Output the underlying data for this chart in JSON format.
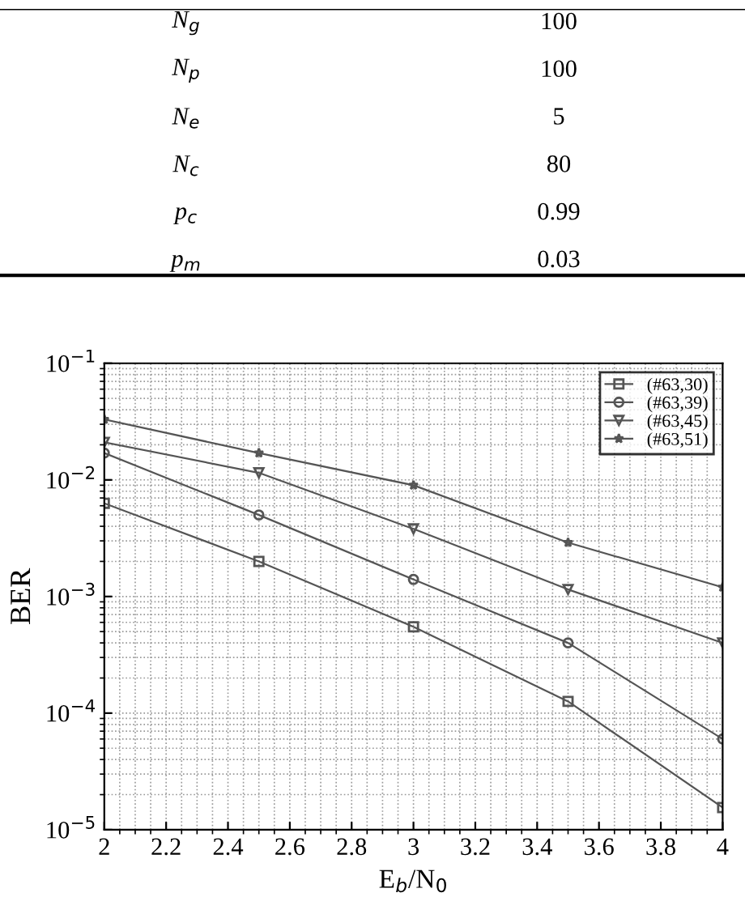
{
  "chart_data": [
    {
      "type": "other",
      "categories": [
        "N$_{g}$",
        "N$_{p}$",
        "N$_{e}$",
        "N$_{c}$",
        "p$_{c}$",
        "p$_{m}$"
      ],
      "values": [
        100,
        100,
        5,
        80,
        0.99,
        0.03
      ],
      "data_labels": true
    },
    {
      "type": "line",
      "xlabel": "E$_{b}$/N$_{0}$",
      "ylabel": "BER",
      "x": [
        2,
        2.5,
        3,
        3.5,
        4
      ],
      "log": "y",
      "xlim": [
        2,
        4
      ],
      "xticks": [
        2,
        2.2,
        2.4,
        2.6,
        2.8,
        3,
        3.2,
        3.4,
        3.6,
        3.8,
        4
      ],
      "ylim": [
        1e-05,
        0.1
      ],
      "yticks": [
        {
          "value": 1e-05,
          "label": "10$^{−5}$"
        },
        {
          "value": 0.0001,
          "label": "10$^{−4}$"
        },
        {
          "value": 0.001,
          "label": "10$^{−3}$"
        },
        {
          "value": 0.01,
          "label": "10$^{−2}$"
        },
        {
          "value": 0.1,
          "label": "10$^{−1}$"
        }
      ],
      "grid": true,
      "legend": "top right",
      "line_style": "solid",
      "series": [
        {
          "name": "(#63,30)",
          "color": "#555555",
          "marker": "square",
          "values": [
            0.0063,
            0.002,
            0.00055,
            0.000126,
            1.55e-05
          ]
        },
        {
          "name": "(#63,39)",
          "color": "#555555",
          "marker": "circle",
          "values": [
            0.017,
            0.005,
            0.0014,
            0.0004,
            6e-05
          ]
        },
        {
          "name": "(#63,45)",
          "color": "#555555",
          "marker": "triangle",
          "values": [
            0.021,
            0.0115,
            0.0038,
            0.00115,
            0.0004
          ]
        },
        {
          "name": "(#63,51)",
          "color": "#555555",
          "marker": "star",
          "values": [
            0.033,
            0.017,
            0.009,
            0.0029,
            0.0012
          ]
        }
      ]
    }
  ]
}
